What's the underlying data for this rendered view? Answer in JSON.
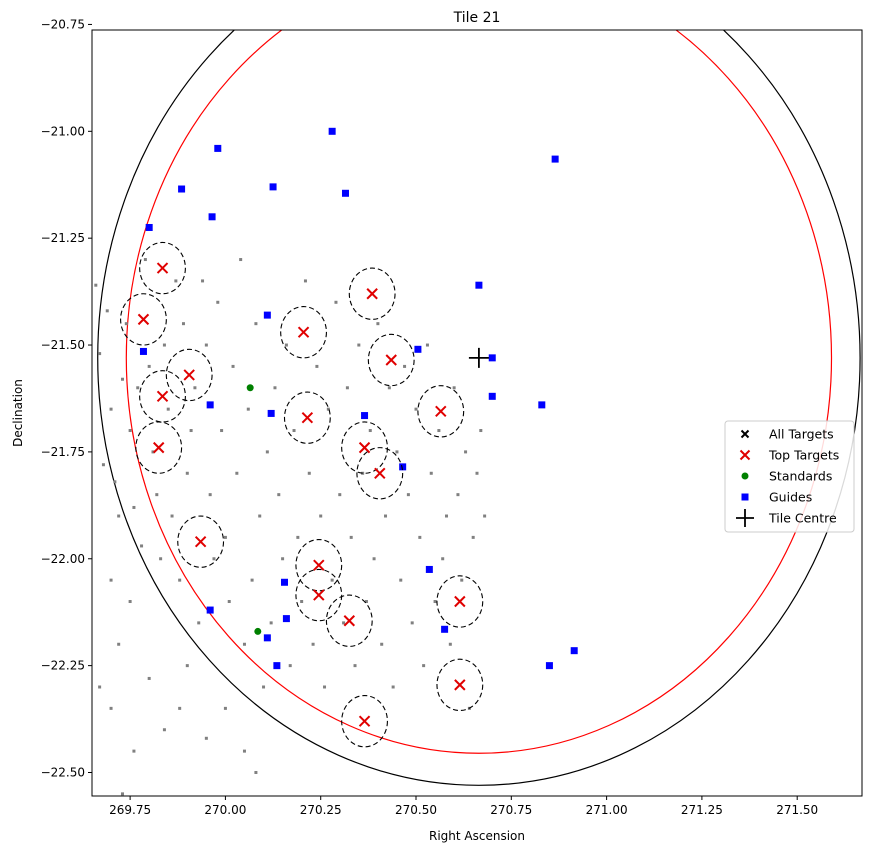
{
  "chart_data": {
    "type": "scatter",
    "title": "Tile 21",
    "xlabel": "Right Ascension",
    "ylabel": "Declination",
    "xlim": [
      269.65,
      271.67
    ],
    "ylim": [
      -22.555,
      -20.763
    ],
    "ylim_note_top": -20.763,
    "xticks": [
      269.75,
      270.0,
      270.25,
      270.5,
      270.75,
      271.0,
      271.25,
      271.5
    ],
    "xtick_labels": [
      "269.75",
      "270.00",
      "270.25",
      "270.50",
      "270.75",
      "271.00",
      "271.25",
      "271.50"
    ],
    "yticks": [
      -20.75,
      -21.0,
      -21.25,
      -21.5,
      -21.75,
      -22.0,
      -22.25,
      -22.5
    ],
    "ytick_labels": [
      "−20.75",
      "−21.00",
      "−21.25",
      "−21.50",
      "−21.75",
      "−22.00",
      "−22.25",
      "−22.50"
    ],
    "grid": false,
    "legend_position": "right",
    "tile_centre": [
      270.665,
      -21.53
    ],
    "field_radius": 1.0,
    "inner_radius": 0.925,
    "patrol_radius": 0.06,
    "colors": {
      "all_targets": "#808080",
      "top_targets": "#e00000",
      "standards": "#008000",
      "guides": "#0000ff",
      "field_outer": "#000000",
      "field_inner": "#ff0000",
      "tile_centre": "#000000"
    },
    "series": [
      {
        "name": "All Targets",
        "marker": "x",
        "points": [
          [
            269.66,
            -21.36
          ],
          [
            269.67,
            -21.52
          ],
          [
            269.68,
            -21.78
          ],
          [
            269.69,
            -21.42
          ],
          [
            269.7,
            -21.65
          ],
          [
            269.71,
            -21.82
          ],
          [
            269.72,
            -21.9
          ],
          [
            269.7,
            -22.05
          ],
          [
            269.73,
            -21.58
          ],
          [
            269.74,
            -21.45
          ],
          [
            269.75,
            -21.7
          ],
          [
            269.76,
            -21.88
          ],
          [
            269.77,
            -21.6
          ],
          [
            269.78,
            -21.97
          ],
          [
            269.75,
            -22.1
          ],
          [
            269.79,
            -21.3
          ],
          [
            269.8,
            -21.55
          ],
          [
            269.81,
            -21.75
          ],
          [
            269.82,
            -21.85
          ],
          [
            269.83,
            -22.0
          ],
          [
            269.84,
            -21.5
          ],
          [
            269.85,
            -21.65
          ],
          [
            269.86,
            -21.9
          ],
          [
            269.87,
            -21.35
          ],
          [
            269.88,
            -22.05
          ],
          [
            269.89,
            -21.45
          ],
          [
            269.9,
            -21.8
          ],
          [
            269.91,
            -21.7
          ],
          [
            269.92,
            -21.6
          ],
          [
            269.93,
            -22.15
          ],
          [
            269.94,
            -21.35
          ],
          [
            269.95,
            -21.5
          ],
          [
            269.96,
            -21.85
          ],
          [
            269.97,
            -22.0
          ],
          [
            269.98,
            -21.4
          ],
          [
            269.99,
            -21.7
          ],
          [
            270.0,
            -21.95
          ],
          [
            270.01,
            -22.1
          ],
          [
            270.02,
            -21.55
          ],
          [
            270.03,
            -21.8
          ],
          [
            270.04,
            -21.3
          ],
          [
            270.05,
            -22.2
          ],
          [
            270.06,
            -21.65
          ],
          [
            270.07,
            -22.05
          ],
          [
            270.08,
            -21.45
          ],
          [
            270.09,
            -21.9
          ],
          [
            270.1,
            -22.3
          ],
          [
            270.11,
            -21.75
          ],
          [
            270.12,
            -22.15
          ],
          [
            270.13,
            -21.6
          ],
          [
            270.14,
            -21.85
          ],
          [
            270.15,
            -22.0
          ],
          [
            270.16,
            -21.5
          ],
          [
            270.17,
            -22.25
          ],
          [
            270.18,
            -21.7
          ],
          [
            270.19,
            -21.95
          ],
          [
            270.2,
            -22.1
          ],
          [
            270.21,
            -21.35
          ],
          [
            270.22,
            -21.8
          ],
          [
            270.23,
            -22.2
          ],
          [
            270.24,
            -21.55
          ],
          [
            270.25,
            -21.9
          ],
          [
            270.26,
            -22.3
          ],
          [
            270.27,
            -21.65
          ],
          [
            270.28,
            -22.05
          ],
          [
            270.29,
            -21.4
          ],
          [
            270.3,
            -21.85
          ],
          [
            270.31,
            -22.15
          ],
          [
            270.32,
            -21.6
          ],
          [
            270.33,
            -21.95
          ],
          [
            270.34,
            -22.25
          ],
          [
            270.35,
            -21.5
          ],
          [
            270.36,
            -21.8
          ],
          [
            270.37,
            -22.1
          ],
          [
            270.38,
            -21.7
          ],
          [
            270.39,
            -22.0
          ],
          [
            270.4,
            -21.45
          ],
          [
            270.41,
            -22.2
          ],
          [
            270.42,
            -21.9
          ],
          [
            270.43,
            -21.6
          ],
          [
            270.44,
            -22.3
          ],
          [
            270.45,
            -21.75
          ],
          [
            270.46,
            -22.05
          ],
          [
            270.47,
            -21.55
          ],
          [
            270.48,
            -21.85
          ],
          [
            270.49,
            -22.15
          ],
          [
            270.5,
            -21.65
          ],
          [
            270.51,
            -21.95
          ],
          [
            270.52,
            -22.25
          ],
          [
            270.53,
            -21.5
          ],
          [
            270.54,
            -21.8
          ],
          [
            270.55,
            -22.1
          ],
          [
            270.56,
            -21.7
          ],
          [
            270.57,
            -22.0
          ],
          [
            270.58,
            -21.9
          ],
          [
            270.59,
            -22.2
          ],
          [
            270.6,
            -21.6
          ],
          [
            270.61,
            -21.85
          ],
          [
            270.62,
            -22.05
          ],
          [
            270.63,
            -21.75
          ],
          [
            270.64,
            -22.35
          ],
          [
            270.65,
            -21.95
          ],
          [
            270.66,
            -21.8
          ],
          [
            270.67,
            -21.7
          ],
          [
            270.68,
            -21.9
          ],
          [
            269.67,
            -22.3
          ],
          [
            269.7,
            -22.35
          ],
          [
            269.72,
            -22.2
          ],
          [
            269.76,
            -22.45
          ],
          [
            269.8,
            -22.28
          ],
          [
            269.84,
            -22.4
          ],
          [
            269.88,
            -22.35
          ],
          [
            269.9,
            -22.25
          ],
          [
            269.95,
            -22.42
          ],
          [
            270.0,
            -22.35
          ],
          [
            270.05,
            -22.45
          ],
          [
            270.08,
            -22.5
          ],
          [
            269.73,
            -22.55
          ]
        ]
      },
      {
        "name": "Top Targets",
        "marker": "x",
        "points": [
          [
            269.835,
            -21.32
          ],
          [
            269.785,
            -21.44
          ],
          [
            269.905,
            -21.57
          ],
          [
            269.835,
            -21.62
          ],
          [
            269.825,
            -21.74
          ],
          [
            269.935,
            -21.96
          ],
          [
            270.205,
            -21.47
          ],
          [
            270.215,
            -21.67
          ],
          [
            270.385,
            -21.38
          ],
          [
            270.435,
            -21.535
          ],
          [
            270.365,
            -21.74
          ],
          [
            270.405,
            -21.8
          ],
          [
            270.565,
            -21.655
          ],
          [
            270.245,
            -22.015
          ],
          [
            270.245,
            -22.085
          ],
          [
            270.325,
            -22.145
          ],
          [
            270.615,
            -22.1
          ],
          [
            270.615,
            -22.295
          ],
          [
            270.365,
            -22.38
          ]
        ]
      },
      {
        "name": "Standards",
        "marker": "o",
        "points": [
          [
            270.065,
            -21.6
          ],
          [
            270.085,
            -22.17
          ]
        ]
      },
      {
        "name": "Guides",
        "marker": "s",
        "points": [
          [
            269.98,
            -21.04
          ],
          [
            270.28,
            -21.0
          ],
          [
            269.885,
            -21.135
          ],
          [
            270.125,
            -21.13
          ],
          [
            270.315,
            -21.145
          ],
          [
            270.865,
            -21.065
          ],
          [
            269.965,
            -21.2
          ],
          [
            269.8,
            -21.225
          ],
          [
            270.11,
            -21.43
          ],
          [
            269.785,
            -21.515
          ],
          [
            270.505,
            -21.51
          ],
          [
            270.665,
            -21.36
          ],
          [
            270.7,
            -21.53
          ],
          [
            269.96,
            -21.64
          ],
          [
            270.12,
            -21.66
          ],
          [
            270.365,
            -21.665
          ],
          [
            270.7,
            -21.62
          ],
          [
            270.83,
            -21.64
          ],
          [
            270.465,
            -21.785
          ],
          [
            270.535,
            -22.025
          ],
          [
            270.155,
            -22.055
          ],
          [
            270.16,
            -22.14
          ],
          [
            269.96,
            -22.12
          ],
          [
            270.11,
            -22.185
          ],
          [
            270.135,
            -22.25
          ],
          [
            270.575,
            -22.165
          ],
          [
            270.85,
            -22.25
          ],
          [
            270.915,
            -22.215
          ]
        ]
      }
    ],
    "legend": [
      "All Targets",
      "Top Targets",
      "Standards",
      "Guides",
      "Tile Centre"
    ]
  }
}
